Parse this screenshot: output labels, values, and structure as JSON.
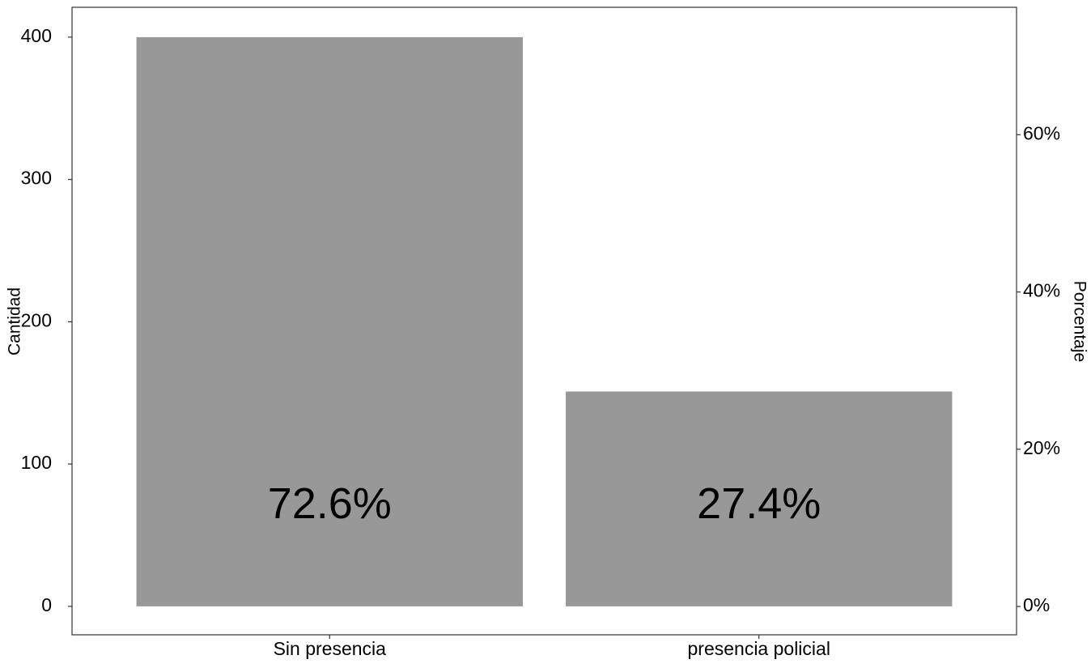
{
  "chart_data": {
    "type": "bar",
    "categories": [
      "Sin presencia",
      "presencia policial"
    ],
    "values": [
      400,
      151
    ],
    "labels": [
      "72.6%",
      "27.4%"
    ],
    "color": "#989898",
    "y_label": "Cantidad",
    "y2_label": "Porcentaje",
    "ylim": [
      -20,
      421
    ],
    "yticks": [
      0,
      100,
      200,
      300,
      400
    ],
    "y2lim": [
      -3.6,
      76.2
    ],
    "y2ticks": [
      {
        "value": 0,
        "label": "0%"
      },
      {
        "value": 20,
        "label": "20%"
      },
      {
        "value": 40,
        "label": "40%"
      },
      {
        "value": 60,
        "label": "60%"
      }
    ]
  }
}
